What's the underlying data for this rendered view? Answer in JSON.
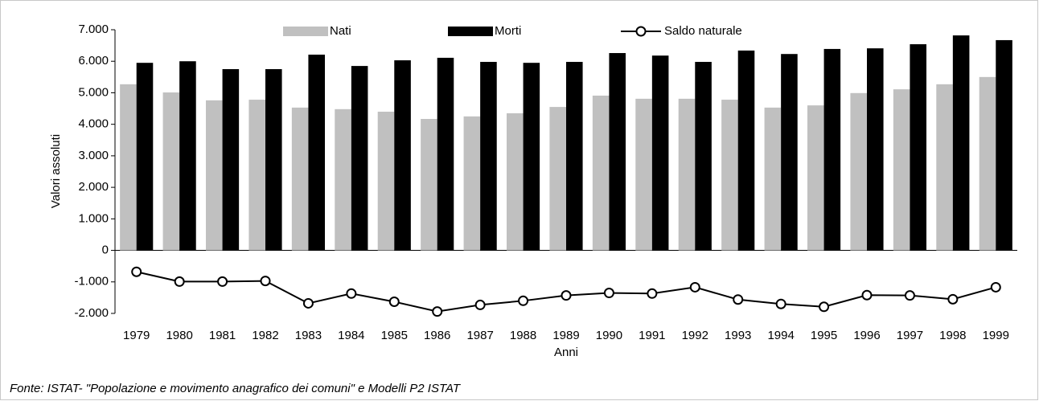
{
  "chart_data": {
    "type": "bar",
    "categories": [
      "1979",
      "1980",
      "1981",
      "1982",
      "1983",
      "1984",
      "1985",
      "1986",
      "1987",
      "1988",
      "1989",
      "1990",
      "1991",
      "1992",
      "1993",
      "1994",
      "1995",
      "1996",
      "1997",
      "1998",
      "1999"
    ],
    "series": [
      {
        "name": "Nati",
        "type": "bar",
        "color": "#c0c0c0",
        "values": [
          5270,
          5010,
          4760,
          4780,
          4530,
          4480,
          4400,
          4170,
          4250,
          4350,
          4550,
          4910,
          4810,
          4810,
          4780,
          4530,
          4600,
          4990,
          5110,
          5270,
          5500
        ]
      },
      {
        "name": "Morti",
        "type": "bar",
        "color": "#000000",
        "values": [
          5950,
          6000,
          5750,
          5750,
          6210,
          5850,
          6030,
          6110,
          5980,
          5950,
          5980,
          6260,
          6180,
          5980,
          6340,
          6230,
          6390,
          6410,
          6540,
          6820,
          6670
        ]
      },
      {
        "name": "Saldo naturale",
        "type": "line",
        "color": "#000000",
        "values": [
          -680,
          -990,
          -990,
          -970,
          -1680,
          -1370,
          -1630,
          -1940,
          -1730,
          -1600,
          -1430,
          -1350,
          -1370,
          -1170,
          -1560,
          -1700,
          -1790,
          -1420,
          -1430,
          -1550,
          -1170
        ]
      }
    ],
    "ylim": [
      -2000,
      7000
    ],
    "yticks": [
      {
        "value": -2000,
        "label": "-2.000"
      },
      {
        "value": -1000,
        "label": "-1.000"
      },
      0,
      {
        "value": 1000,
        "label": "1.000"
      },
      {
        "value": 2000,
        "label": "2.000"
      },
      {
        "value": 3000,
        "label": "3.000"
      },
      {
        "value": 4000,
        "label": "4.000"
      },
      {
        "value": 5000,
        "label": "5.000"
      },
      {
        "value": 6000,
        "label": "6.000"
      },
      {
        "value": 7000,
        "label": "7.000"
      }
    ],
    "ylabel": "Valori assoluti",
    "xlabel": "Anni",
    "source": "Fonte: ISTAT- \"Popolazione e movimento anagrafico dei comuni\" e Modelli P2 ISTAT",
    "grid": false
  }
}
